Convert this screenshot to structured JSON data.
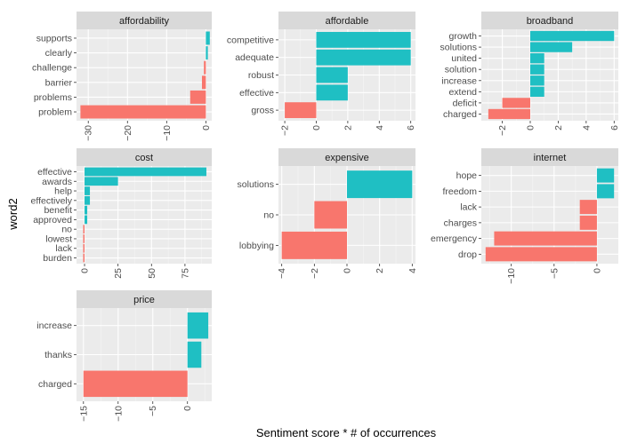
{
  "chart_data": {
    "type": "bar",
    "orientation": "horizontal",
    "xlabel": "Sentiment score * # of occurrences",
    "ylabel": "word2",
    "colors": {
      "positive": "#1FBFC3",
      "negative": "#F8766D"
    },
    "grid": true,
    "legend": "none",
    "panels": [
      {
        "title": "affordability",
        "xlim": [
          -33,
          1.5
        ],
        "xticks": [
          -30,
          -20,
          -10,
          0
        ],
        "categories": [
          "supports",
          "clearly",
          "challenge",
          "barrier",
          "problems",
          "problem"
        ],
        "values": [
          1,
          0.5,
          -0.5,
          -1,
          -4,
          -32
        ]
      },
      {
        "title": "affordable",
        "xlim": [
          -2.4,
          6.3
        ],
        "xticks": [
          -2,
          0,
          2,
          4,
          6
        ],
        "categories": [
          "competitive",
          "adequate",
          "robust",
          "effective",
          "gross"
        ],
        "values": [
          6,
          6,
          2,
          2,
          -2
        ]
      },
      {
        "title": "broadband",
        "xlim": [
          -3.5,
          6.3
        ],
        "xticks": [
          -2,
          0,
          2,
          4,
          6
        ],
        "categories": [
          "growth",
          "solutions",
          "united",
          "solution",
          "increase",
          "extend",
          "deficit",
          "charged"
        ],
        "values": [
          6,
          3,
          1,
          1,
          1,
          1,
          -2,
          -3
        ]
      },
      {
        "title": "cost",
        "xlim": [
          -6,
          95
        ],
        "xticks": [
          0,
          25,
          50,
          75
        ],
        "categories": [
          "effective",
          "awards",
          "help",
          "effectively",
          "benefit",
          "approved",
          "no",
          "lowest",
          "lack",
          "burden"
        ],
        "values": [
          91,
          25,
          4,
          4,
          2,
          2,
          -1,
          -1,
          -1,
          -1
        ]
      },
      {
        "title": "expensive",
        "xlim": [
          -4.2,
          4.2
        ],
        "xticks": [
          -4,
          -2,
          0,
          2,
          4
        ],
        "categories": [
          "solutions",
          "no",
          "lobbying"
        ],
        "values": [
          4,
          -2,
          -4
        ]
      },
      {
        "title": "internet",
        "xlim": [
          -13.5,
          2.5
        ],
        "xticks": [
          -10,
          -5,
          0
        ],
        "categories": [
          "hope",
          "freedom",
          "lack",
          "charges",
          "emergency",
          "drop"
        ],
        "values": [
          2,
          2,
          -2,
          -2,
          -12,
          -13
        ]
      },
      {
        "title": "price",
        "xlim": [
          -16,
          3.5
        ],
        "xticks": [
          -15,
          -10,
          -5,
          0
        ],
        "categories": [
          "increase",
          "thanks",
          "charged"
        ],
        "values": [
          3,
          2,
          -15
        ]
      }
    ]
  }
}
